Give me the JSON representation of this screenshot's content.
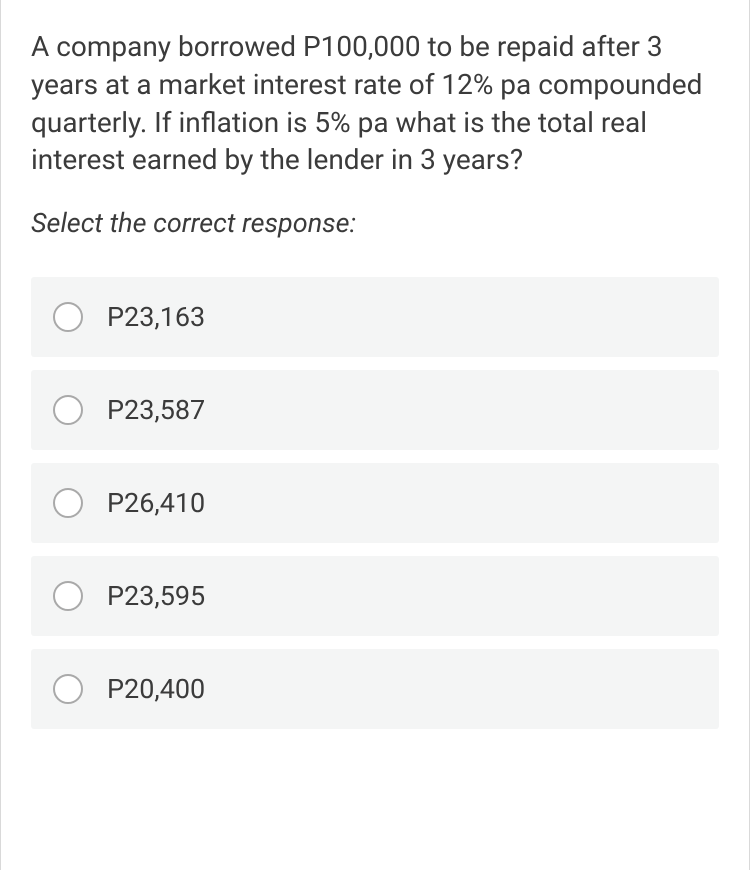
{
  "question": {
    "text": "A company borrowed P100,000 to be repaid after 3 years at a market interest rate of 12% pa compounded quarterly. If inflation is 5% pa what is the total real interest earned by the lender in 3 years?",
    "instruction": "Select the correct response:",
    "options": [
      {
        "label": "P23,163",
        "selected": false
      },
      {
        "label": "P23,587",
        "selected": false
      },
      {
        "label": "P26,410",
        "selected": false
      },
      {
        "label": "P23,595",
        "selected": false
      },
      {
        "label": "P20,400",
        "selected": false
      }
    ]
  },
  "styles": {
    "card_border_color": "#d9d9d9",
    "card_background": "#ffffff",
    "text_color": "#3b3b3b",
    "question_fontsize": 28,
    "instruction_fontsize": 27,
    "option_fontsize": 27,
    "option_background": "#f4f5f5",
    "radio_border_color": "#a9a9a9",
    "radio_size": 30
  }
}
